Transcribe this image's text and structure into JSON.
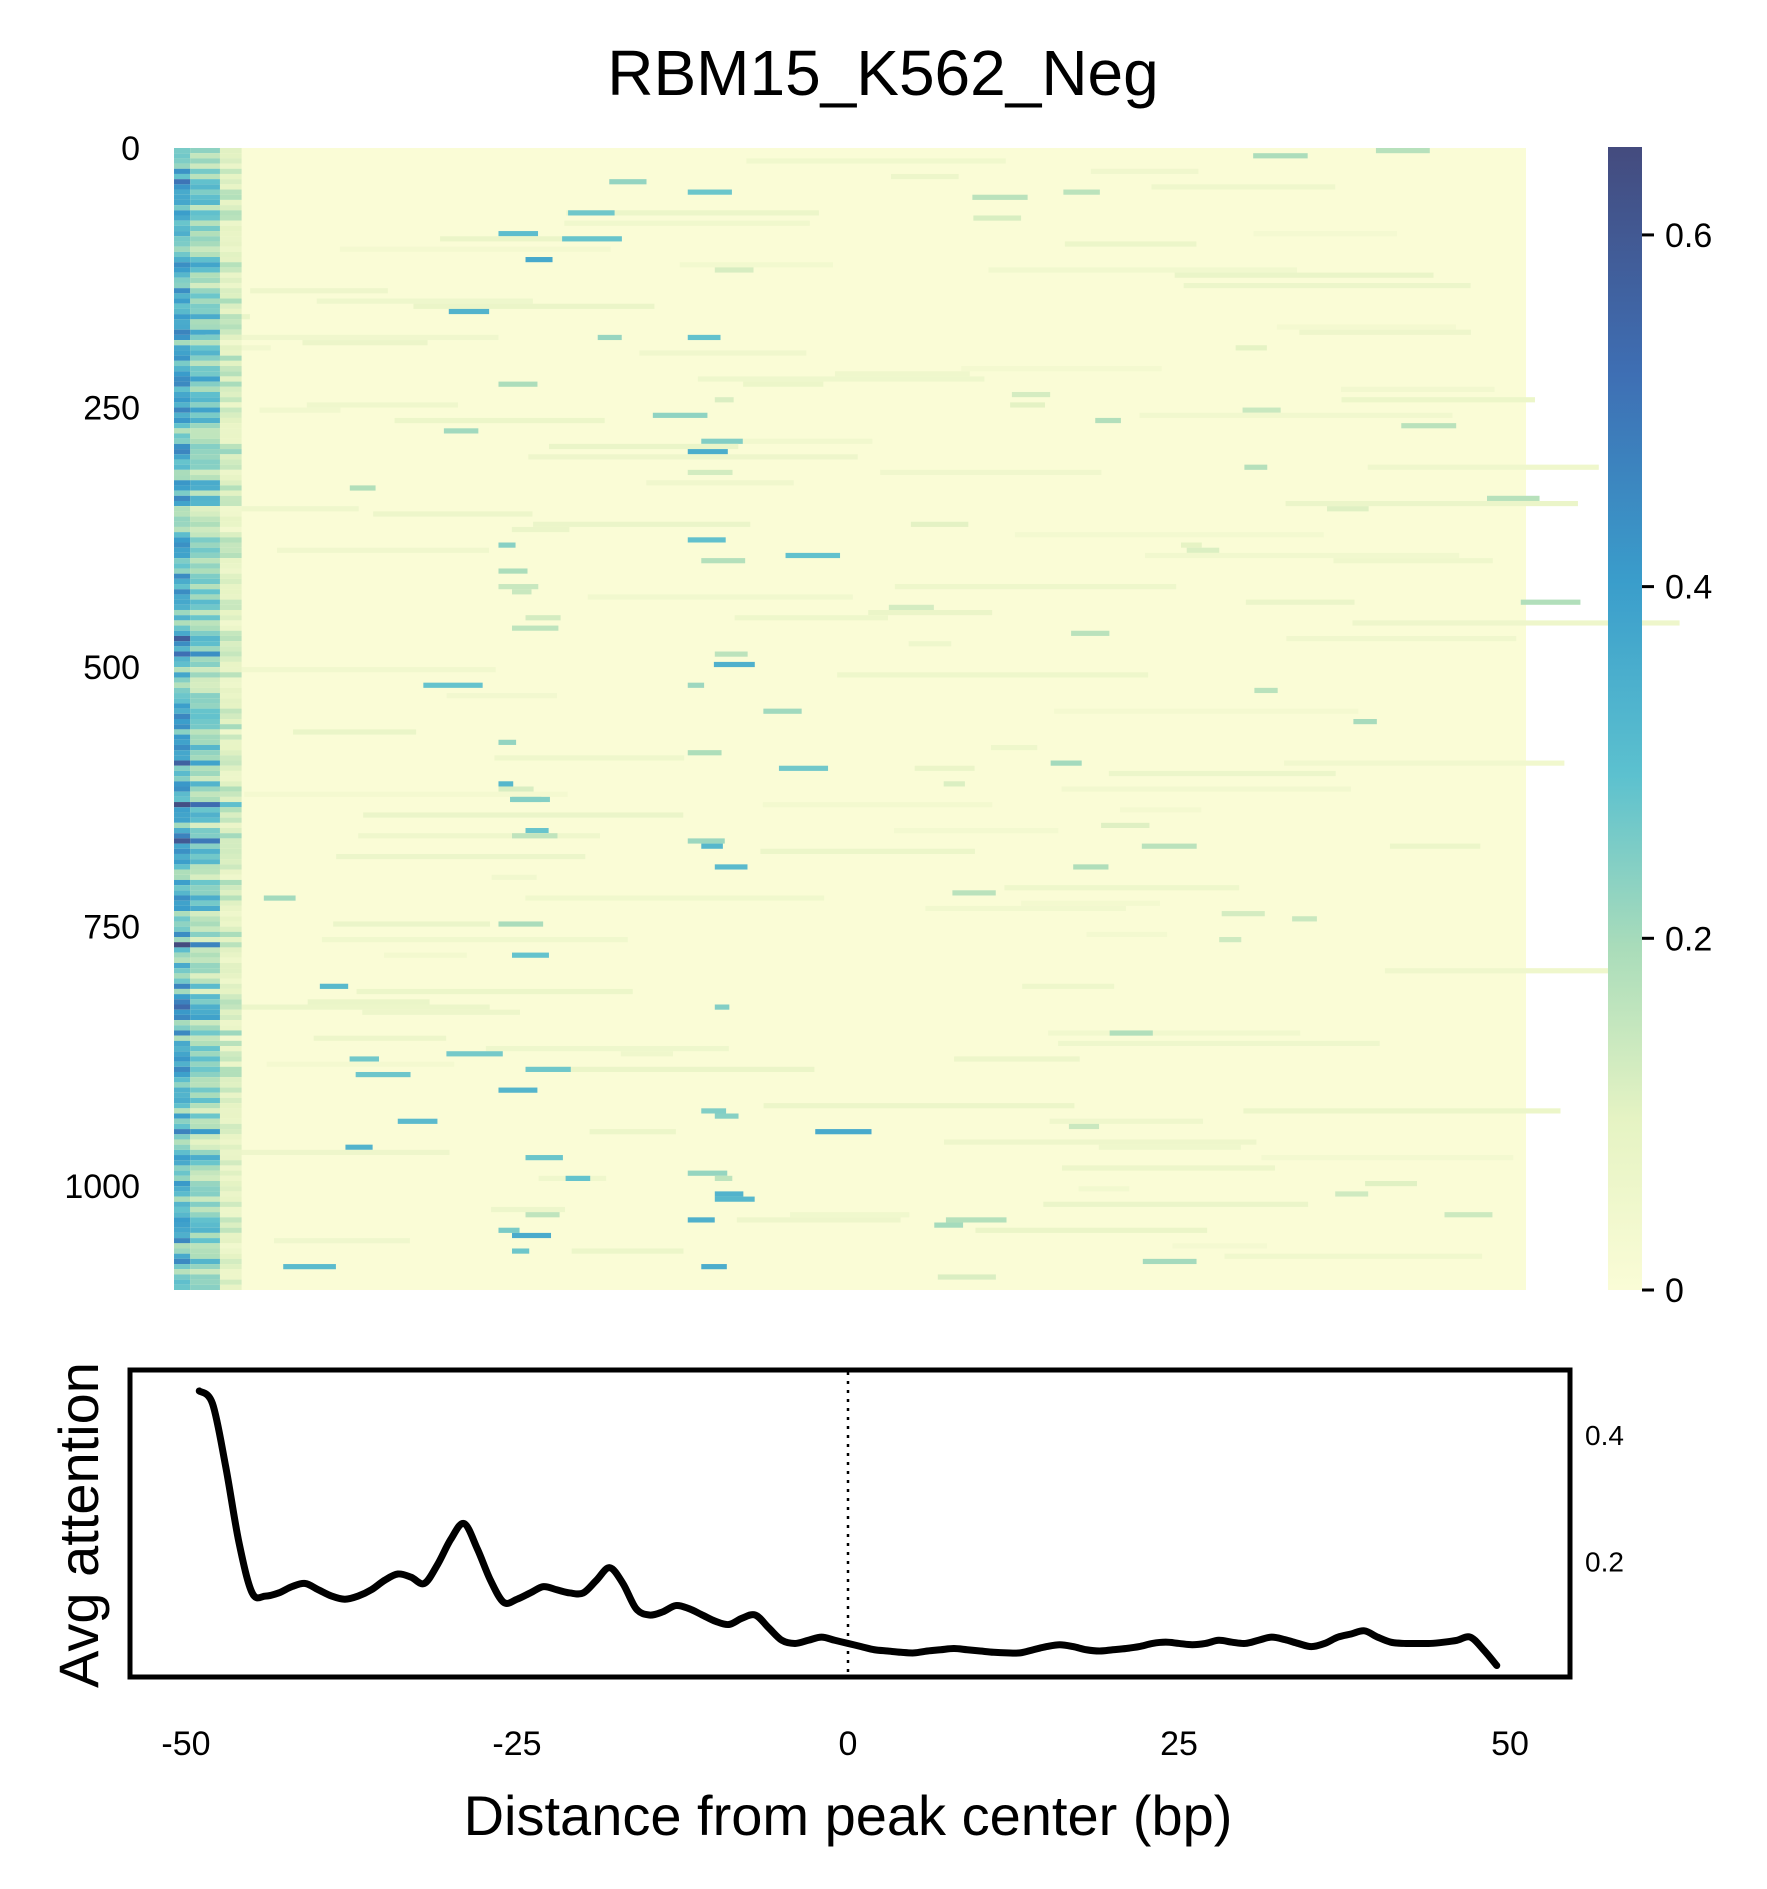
{
  "title": "RBM15_K562_Neg",
  "colors": {
    "low": "#fafcd6",
    "mid": "#c9e7b8",
    "teal": "#5cc1cf",
    "blue": "#3a8fc7",
    "dark": "#4a4f8c",
    "line": "#000000"
  },
  "chart_data": [
    {
      "type": "heatmap",
      "title": "RBM15_K562_Neg",
      "y_ticks": [
        0,
        250,
        500,
        750,
        1000
      ],
      "y_tick_labels": [
        "0",
        "250",
        "500",
        "750",
        "1000"
      ],
      "rows": 1100,
      "x_range": [
        -50,
        50
      ],
      "colorbar": {
        "range": [
          0,
          0.65
        ],
        "ticks": [
          0,
          0.2,
          0.4,
          0.6
        ],
        "tick_labels": [
          "0",
          "0.2",
          "0.4",
          "0.6"
        ],
        "colormap": "YlGnBu"
      },
      "hotspot_columns_bp": [
        -49,
        -48,
        -47,
        -26,
        -25,
        -24,
        -12,
        -11,
        -10
      ]
    },
    {
      "type": "line",
      "ylabel": "Avg attention",
      "xlabel": "Distance from peak center (bp)",
      "xlim": [
        -50,
        50
      ],
      "ylim": [
        0.02,
        0.5
      ],
      "x_ticks": [
        -50,
        -25,
        0,
        25,
        50
      ],
      "x_tick_labels": [
        "-50",
        "-25",
        "0",
        "25",
        "50"
      ],
      "y_ticks": [
        0.2,
        0.4
      ],
      "y_tick_labels": [
        "0.2",
        "0.4"
      ],
      "vline_x": 0,
      "series": [
        {
          "x": [
            -49,
            -48,
            -47,
            -46,
            -45,
            -44,
            -43,
            -42,
            -41,
            -40,
            -39,
            -38,
            -37,
            -36,
            -35,
            -34,
            -33,
            -32,
            -31,
            -30,
            -29,
            -28,
            -27,
            -26,
            -25,
            -24,
            -23,
            -22,
            -21,
            -20,
            -19,
            -18,
            -17,
            -16,
            -15,
            -14,
            -13,
            -12,
            -11,
            -10,
            -9,
            -8,
            -7,
            -6,
            -5,
            -4,
            -3,
            -2,
            -1,
            0,
            1,
            2,
            3,
            4,
            5,
            6,
            7,
            8,
            9,
            10,
            11,
            12,
            13,
            14,
            15,
            16,
            17,
            18,
            19,
            20,
            21,
            22,
            23,
            24,
            25,
            26,
            27,
            28,
            29,
            30,
            31,
            32,
            33,
            34,
            35,
            36,
            37,
            38,
            39,
            40,
            41,
            42,
            43,
            44,
            45,
            46,
            47,
            48,
            49
          ],
          "y": [
            0.47,
            0.45,
            0.35,
            0.23,
            0.15,
            0.145,
            0.15,
            0.16,
            0.165,
            0.155,
            0.145,
            0.14,
            0.145,
            0.155,
            0.17,
            0.18,
            0.175,
            0.165,
            0.195,
            0.235,
            0.26,
            0.22,
            0.17,
            0.135,
            0.14,
            0.15,
            0.16,
            0.155,
            0.15,
            0.15,
            0.17,
            0.19,
            0.165,
            0.125,
            0.115,
            0.12,
            0.13,
            0.125,
            0.115,
            0.105,
            0.1,
            0.11,
            0.115,
            0.095,
            0.075,
            0.07,
            0.075,
            0.08,
            0.075,
            0.07,
            0.065,
            0.06,
            0.058,
            0.056,
            0.055,
            0.058,
            0.06,
            0.062,
            0.06,
            0.058,
            0.056,
            0.055,
            0.055,
            0.06,
            0.065,
            0.068,
            0.065,
            0.06,
            0.058,
            0.06,
            0.062,
            0.065,
            0.07,
            0.072,
            0.07,
            0.068,
            0.07,
            0.075,
            0.072,
            0.07,
            0.075,
            0.08,
            0.076,
            0.07,
            0.065,
            0.07,
            0.08,
            0.085,
            0.09,
            0.08,
            0.072,
            0.07,
            0.07,
            0.07,
            0.072,
            0.075,
            0.08,
            0.06,
            0.035
          ]
        }
      ]
    }
  ]
}
